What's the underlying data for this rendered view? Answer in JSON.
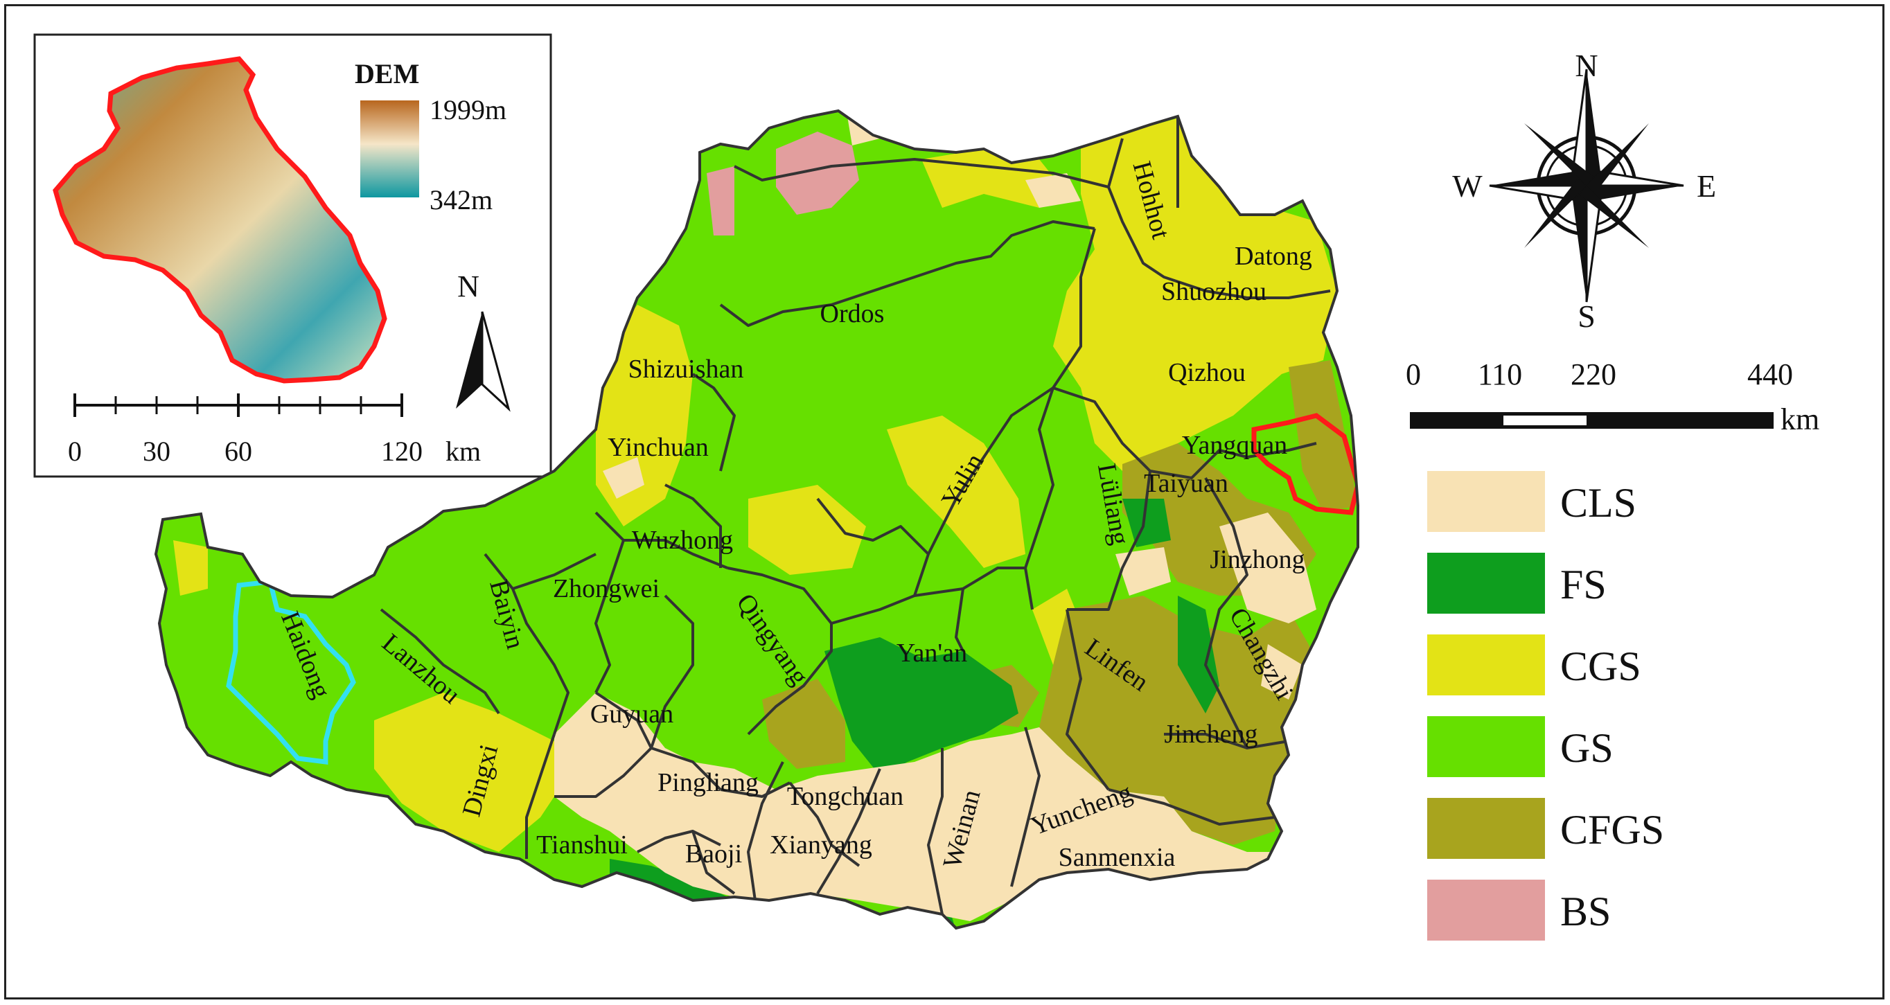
{
  "inset": {
    "dem_title": "DEM",
    "dem_max": "1999m",
    "dem_min": "342m",
    "north_letter": "N",
    "scale_ticks": [
      "0",
      "30",
      "60",
      "120"
    ],
    "scale_unit": "km",
    "boundary_color": "#ff1a1a"
  },
  "compass": {
    "n": "N",
    "s": "S",
    "e": "E",
    "w": "W"
  },
  "scale_bar": {
    "ticks": [
      "0",
      "110",
      "220",
      "440"
    ],
    "unit": "km"
  },
  "legend": [
    {
      "code": "CLS",
      "color": "#f8e2b4"
    },
    {
      "code": "FS",
      "color": "#0e9e1e"
    },
    {
      "code": "CGS",
      "color": "#e3e316"
    },
    {
      "code": "GS",
      "color": "#66e000"
    },
    {
      "code": "CFGS",
      "color": "#a8a41e"
    },
    {
      "code": "BS",
      "color": "#e29e9e"
    }
  ],
  "cities": [
    "Ordos",
    "Hohhot",
    "Datong",
    "Shuozhou",
    "Qizhou",
    "Shizuishan",
    "Yinchuan",
    "Yulin",
    "Lüliang",
    "Yangquan",
    "Taiyuan",
    "Jinzhong",
    "Wuzhong",
    "Zhongwei",
    "Baiyin",
    "Haidong",
    "Lanzhou",
    "Qingyang",
    "Yan'an",
    "Changzhi",
    "Linfen",
    "Jincheng",
    "Guyuan",
    "Dingxi",
    "Pingliang",
    "Tongchuan",
    "Weinan",
    "Yuncheng",
    "Tianshui",
    "Baoji",
    "Xianyang",
    "Sanmenxia"
  ],
  "highlight_colors": {
    "haidong_outline": "#33e0f0",
    "yangquan_outline": "#ff1a1a"
  }
}
